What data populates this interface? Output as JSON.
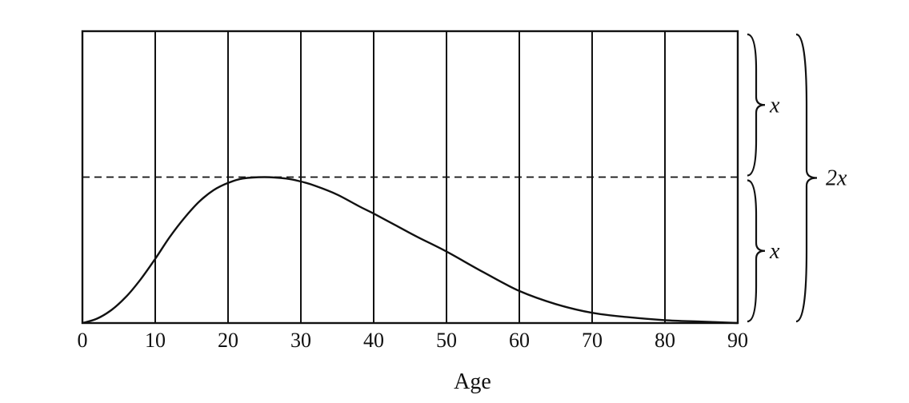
{
  "chart_data": {
    "type": "line",
    "title": "",
    "xlabel": "Age",
    "ylabel": "",
    "xlim": [
      0,
      90
    ],
    "ylim": [
      0,
      2
    ],
    "x_ticks": [
      0,
      10,
      20,
      30,
      40,
      50,
      60,
      70,
      80,
      90
    ],
    "grid": "vertical",
    "series": [
      {
        "x": [
          0,
          2,
          4,
          6,
          8,
          10,
          12,
          14,
          16,
          18,
          20,
          22,
          25,
          28,
          30,
          32,
          35,
          38,
          40,
          43,
          46,
          50,
          55,
          60,
          65,
          70,
          75,
          80,
          85,
          90
        ],
        "y": [
          0,
          0.03,
          0.09,
          0.18,
          0.3,
          0.44,
          0.59,
          0.72,
          0.83,
          0.91,
          0.96,
          0.99,
          1.0,
          0.99,
          0.97,
          0.94,
          0.88,
          0.8,
          0.75,
          0.67,
          0.59,
          0.49,
          0.35,
          0.22,
          0.13,
          0.07,
          0.04,
          0.02,
          0.01,
          0
        ]
      }
    ],
    "reference_line": {
      "y": 1,
      "style": "dashed"
    },
    "annotations": [
      {
        "label": "x",
        "range": [
          1,
          2
        ]
      },
      {
        "label": "x",
        "range": [
          0,
          1
        ]
      },
      {
        "label": "2x",
        "range": [
          0,
          2
        ]
      }
    ]
  }
}
